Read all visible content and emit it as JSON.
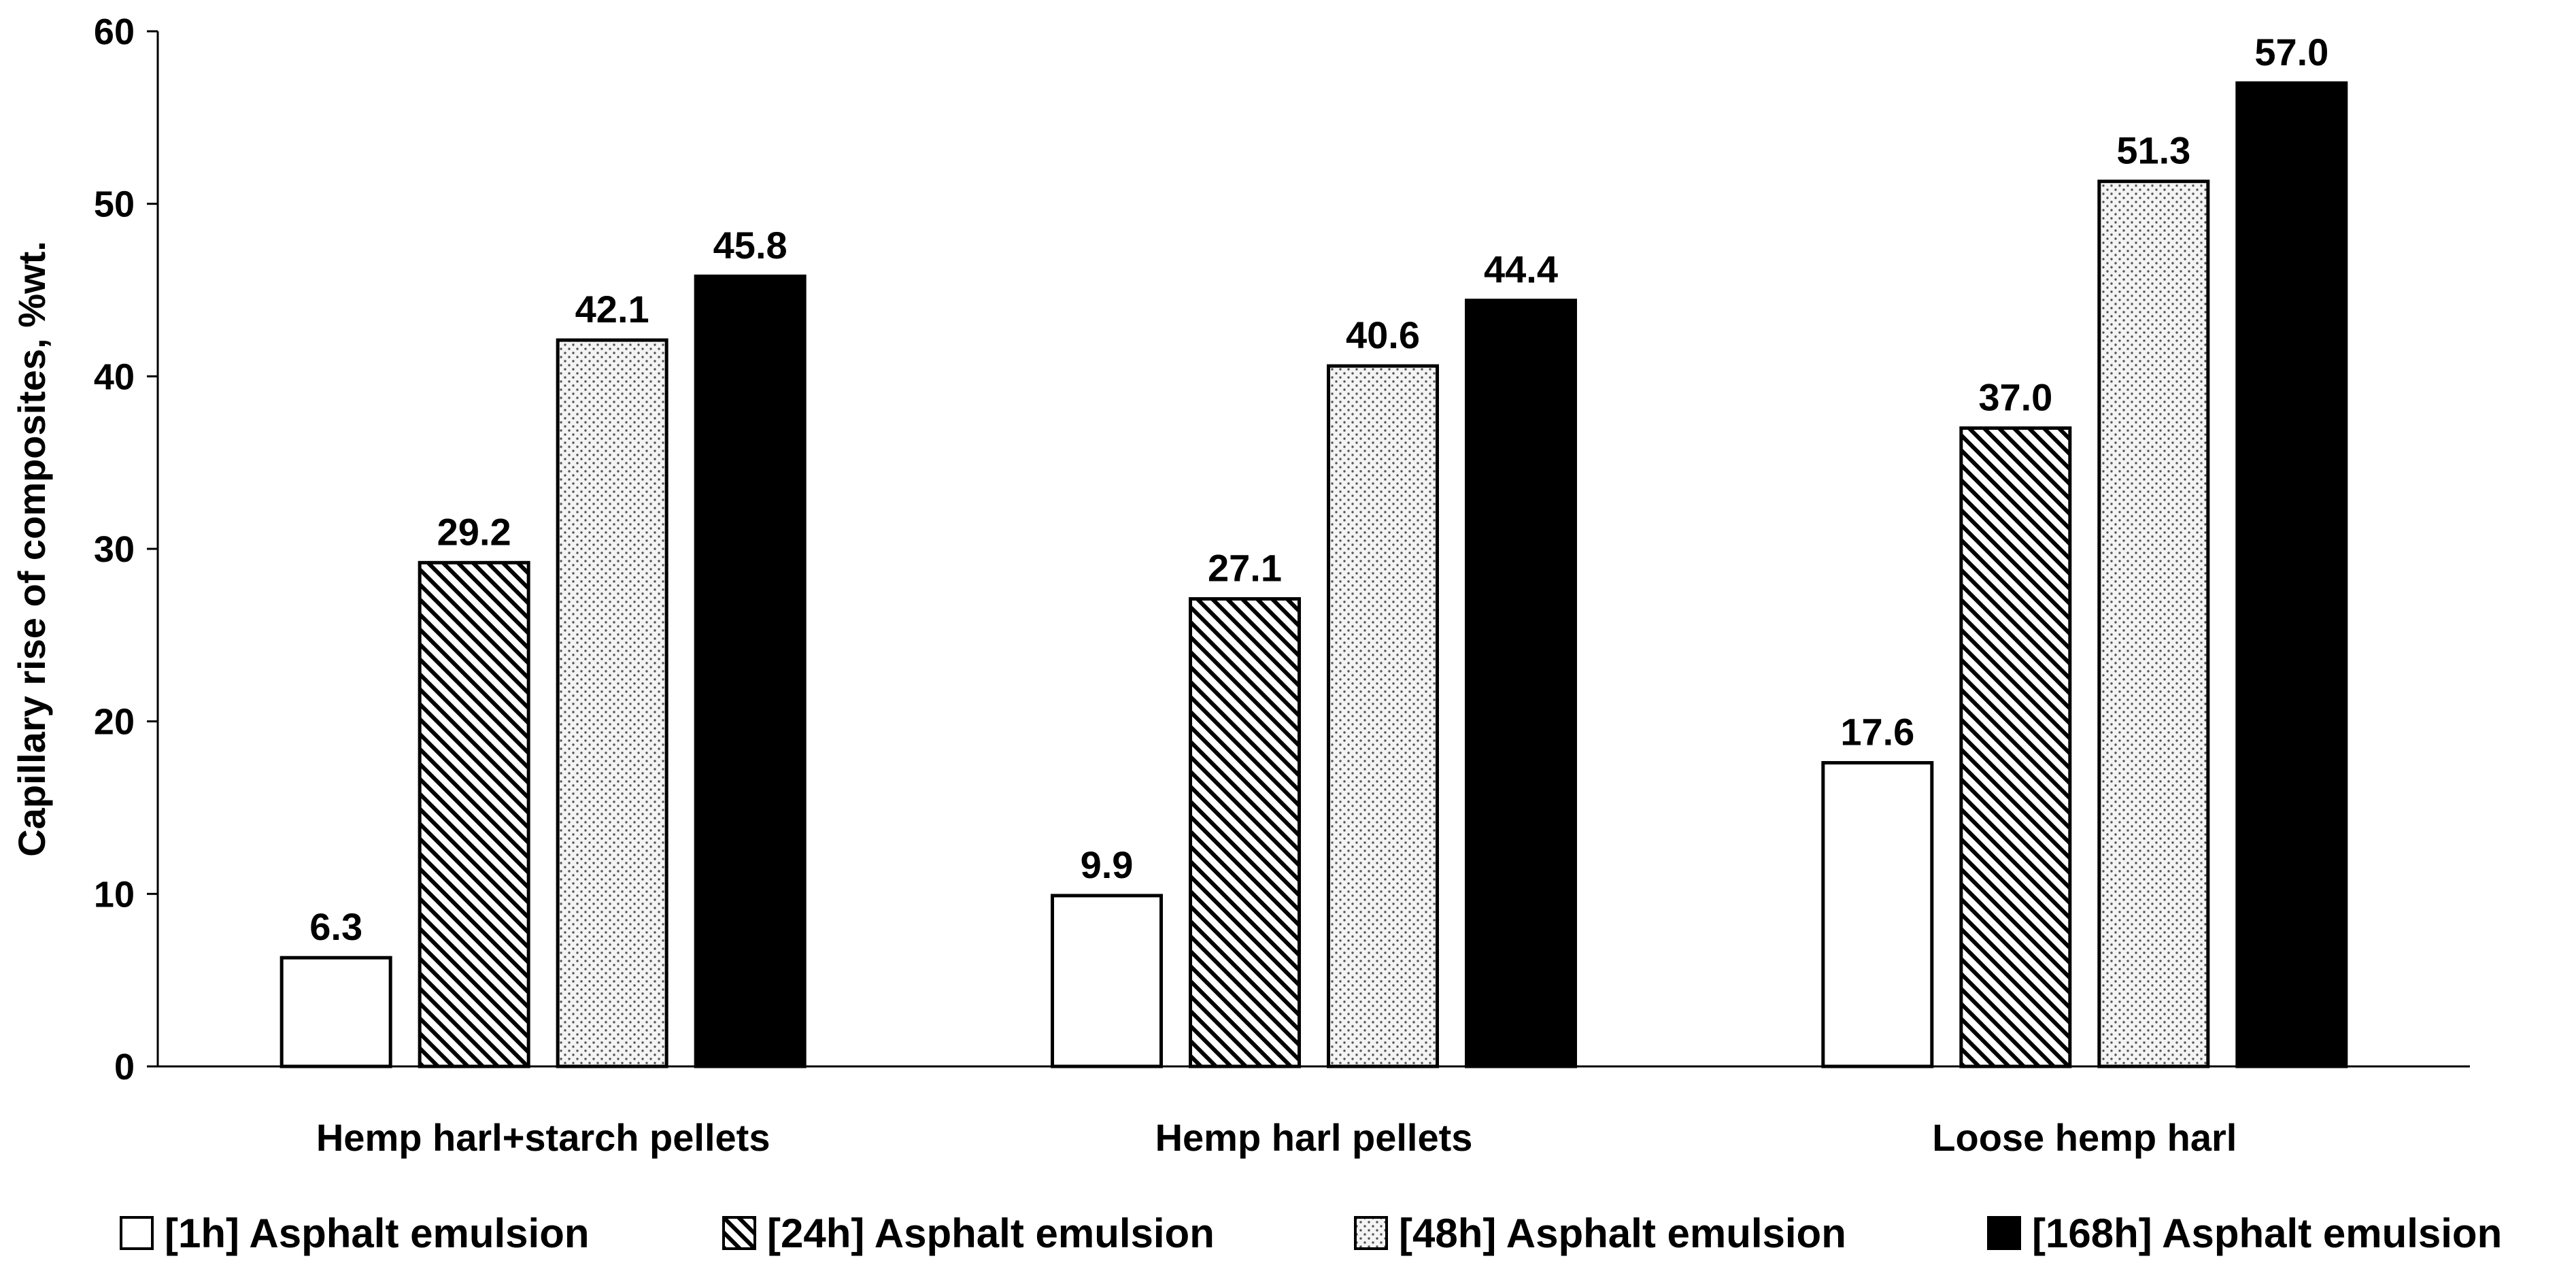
{
  "chart_data": {
    "type": "bar",
    "ylabel": "Capillary rise of composites, %wt.",
    "ylim": [
      0,
      60
    ],
    "yticks": [
      0,
      10,
      20,
      30,
      40,
      50,
      60
    ],
    "grid": false,
    "legend_position": "bottom",
    "categories": [
      "Hemp harl+starch pellets",
      "Hemp harl pellets",
      "Loose hemp harl"
    ],
    "series": [
      {
        "name": "[1h] Asphalt emulsion",
        "values": [
          6.3,
          9.9,
          17.6
        ],
        "labels": [
          "6.3",
          "9.9",
          "17.6"
        ],
        "fill": "white"
      },
      {
        "name": "[24h] Asphalt emulsion",
        "values": [
          29.2,
          27.1,
          37.0
        ],
        "labels": [
          "29.2",
          "27.1",
          "37.0"
        ],
        "fill": "diagonal-hatch"
      },
      {
        "name": "[48h] Asphalt emulsion",
        "values": [
          42.1,
          40.6,
          51.3
        ],
        "labels": [
          "42.1",
          "40.6",
          "51.3"
        ],
        "fill": "dotted"
      },
      {
        "name": "[168h] Asphalt emulsion",
        "values": [
          45.8,
          44.4,
          57.0
        ],
        "labels": [
          "45.8",
          "44.4",
          "57.0"
        ],
        "fill": "black"
      }
    ],
    "colors": {
      "ink": "#000000",
      "background": "#ffffff"
    }
  }
}
